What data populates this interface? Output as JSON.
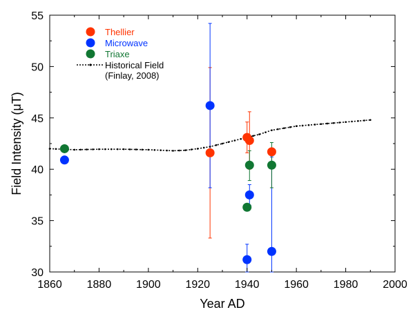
{
  "chart_data": {
    "type": "scatter",
    "xlabel": "Year AD",
    "ylabel": "Field Intensity (μT)",
    "xlim": [
      1860,
      2000
    ],
    "ylim": [
      30,
      55
    ],
    "xticks": [
      1860,
      1880,
      1900,
      1920,
      1940,
      1960,
      1980,
      2000
    ],
    "yticks": [
      30,
      35,
      40,
      45,
      50,
      55
    ],
    "grid": false,
    "legend_position": "top-left",
    "series": [
      {
        "name": "Thellier",
        "color": "#ff3300",
        "points": [
          {
            "x": 1925,
            "y": 41.6,
            "yerr_low": 33.3,
            "yerr_high": 49.9
          },
          {
            "x": 1940,
            "y": 43.1,
            "yerr_low": 41.6,
            "yerr_high": 44.6
          },
          {
            "x": 1941,
            "y": 42.8,
            "yerr_low": 40.0,
            "yerr_high": 45.6
          },
          {
            "x": 1950,
            "y": 41.7,
            "yerr_low": 38.2,
            "yerr_high": 41.7
          }
        ]
      },
      {
        "name": "Microwave",
        "color": "#0033ff",
        "points": [
          {
            "x": 1866,
            "y": 40.9,
            "yerr_low": null,
            "yerr_high": null
          },
          {
            "x": 1925,
            "y": 46.2,
            "yerr_low": 38.2,
            "yerr_high": 54.2
          },
          {
            "x": 1940,
            "y": 31.2,
            "yerr_low": 30.0,
            "yerr_high": 32.7
          },
          {
            "x": 1941,
            "y": 37.5,
            "yerr_low": 36.5,
            "yerr_high": 38.5
          },
          {
            "x": 1950,
            "y": 32.0,
            "yerr_low": 30.0,
            "yerr_high": 41.2
          }
        ]
      },
      {
        "name": "Triaxe",
        "color": "#117733",
        "points": [
          {
            "x": 1866,
            "y": 42.0,
            "yerr_low": null,
            "yerr_high": null
          },
          {
            "x": 1940,
            "y": 36.3,
            "yerr_low": null,
            "yerr_high": null
          },
          {
            "x": 1941,
            "y": 40.4,
            "yerr_low": 38.9,
            "yerr_high": 41.8
          },
          {
            "x": 1950,
            "y": 40.4,
            "yerr_low": 38.2,
            "yerr_high": 42.6
          }
        ]
      }
    ],
    "historical_field": {
      "name": "Historical Field",
      "name_line2": "(Finlay, 2008)",
      "color": "#000000",
      "x": [
        1860,
        1870,
        1880,
        1890,
        1900,
        1910,
        1915,
        1920,
        1925,
        1930,
        1935,
        1940,
        1945,
        1950,
        1960,
        1970,
        1980,
        1990
      ],
      "y": [
        42.0,
        41.9,
        41.95,
        41.95,
        41.9,
        41.8,
        41.85,
        42.0,
        42.2,
        42.5,
        42.8,
        43.1,
        43.4,
        43.8,
        44.2,
        44.4,
        44.6,
        44.8
      ]
    }
  }
}
